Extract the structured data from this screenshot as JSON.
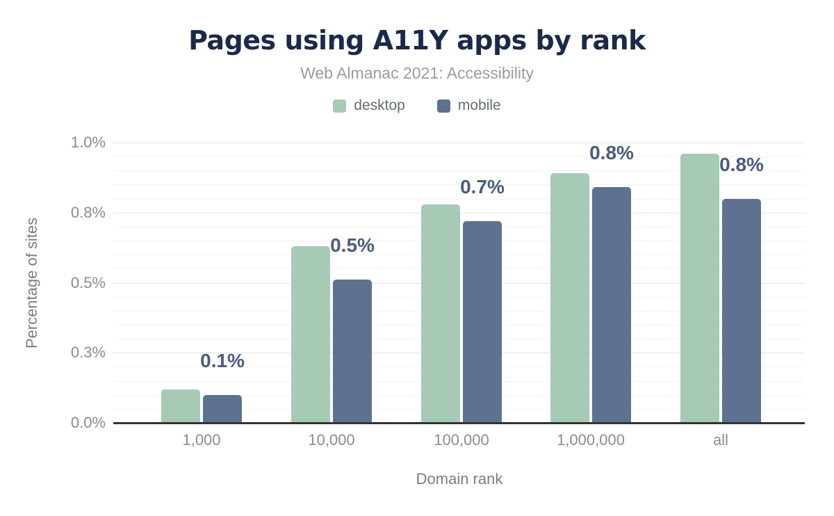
{
  "chart_data": {
    "type": "bar",
    "title": "Pages using A11Y apps by rank",
    "subtitle": "Web Almanac 2021: Accessibility",
    "xlabel": "Domain rank",
    "ylabel": "Percentage of sites",
    "categories": [
      "1,000",
      "10,000",
      "100,000",
      "1,000,000",
      "all"
    ],
    "series": [
      {
        "name": "desktop",
        "color": "#a6cab6",
        "values": [
          0.12,
          0.63,
          0.78,
          0.89,
          0.96
        ]
      },
      {
        "name": "mobile",
        "color": "#5f7190",
        "values": [
          0.1,
          0.51,
          0.72,
          0.84,
          0.8
        ]
      }
    ],
    "bar_labels": [
      "0.1%",
      "0.5%",
      "0.7%",
      "0.8%",
      "0.8%"
    ],
    "bar_labels_series": "mobile",
    "ylim": [
      0,
      1.0
    ],
    "yticks": [
      {
        "value": 0.0,
        "label": "0.0%"
      },
      {
        "value": 0.25,
        "label": "0.3%"
      },
      {
        "value": 0.5,
        "label": "0.5%"
      },
      {
        "value": 0.75,
        "label": "0.8%"
      },
      {
        "value": 1.0,
        "label": "1.0%"
      }
    ],
    "minor_grid_step": 0.05,
    "grid": true,
    "legend_position": "top",
    "value_unit": "%"
  },
  "colors": {
    "background": "#ffffff",
    "title": "#1b2a49",
    "subtitle": "#9b9b9b",
    "legend_text": "#636c72",
    "tick_text": "#8c8c8c",
    "axis_title_text": "#7d7d7d",
    "data_label": "#4a5c7d",
    "axis_line": "#333333",
    "grid_major": "#e4e4e4",
    "grid_minor": "#f2f2f2",
    "desktop": "#a6cab6",
    "mobile": "#5f7190"
  }
}
